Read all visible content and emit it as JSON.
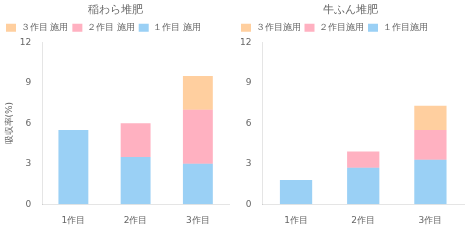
{
  "chart_data": [
    {
      "type": "bar",
      "stacked": true,
      "title": "稲わら堆肥",
      "ylabel": "吸収率(%)",
      "categories": [
        "1作目",
        "2作目",
        "3作目"
      ],
      "series": [
        {
          "name": "１作目 施用",
          "values": [
            5.5,
            3.5,
            3.0
          ]
        },
        {
          "name": "２作目 施用",
          "values": [
            0.0,
            2.5,
            4.0
          ]
        },
        {
          "name": "３作目 施用",
          "values": [
            0.0,
            0.0,
            2.5
          ]
        }
      ],
      "ylim": [
        0,
        12
      ],
      "yticks": [
        0,
        3,
        6,
        9,
        12
      ],
      "grid": false,
      "legend": "upper left"
    },
    {
      "type": "bar",
      "stacked": true,
      "title": "牛ふん堆肥",
      "categories": [
        "1作目",
        "2作目",
        "3作目"
      ],
      "series": [
        {
          "name": "１作目施用",
          "values": [
            1.8,
            2.7,
            3.3
          ]
        },
        {
          "name": "２作目施用",
          "values": [
            0.0,
            1.2,
            2.2
          ]
        },
        {
          "name": "３作目施用",
          "values": [
            0.0,
            0.0,
            1.8
          ]
        }
      ],
      "ylim": [
        0,
        12
      ],
      "yticks": [
        0,
        3,
        6,
        9,
        12
      ],
      "grid": false,
      "legend": "upper left"
    }
  ]
}
